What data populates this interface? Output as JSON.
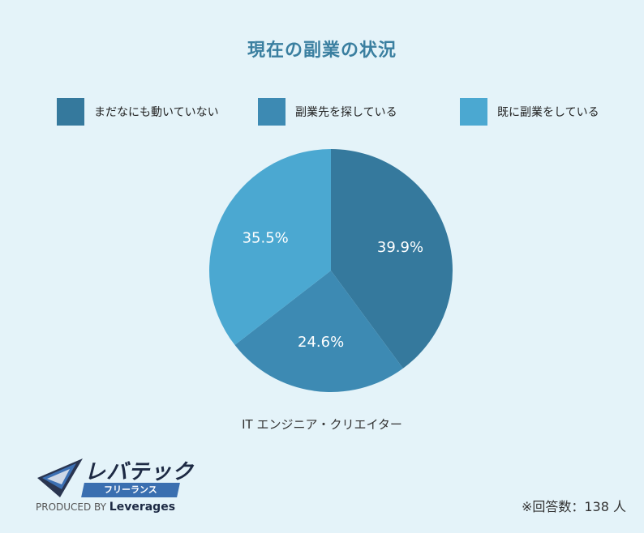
{
  "title": "現在の副業の状況",
  "legend": [
    {
      "label": "まだなにも動いていない",
      "color": "#35799d"
    },
    {
      "label": "副業先を探している",
      "color": "#3d8ab3"
    },
    {
      "label": "既に副業をしている",
      "color": "#4ba8d1"
    }
  ],
  "chart_data": {
    "type": "pie",
    "categories": [
      "まだなにも動いていない",
      "副業先を探している",
      "既に副業をしている"
    ],
    "values": [
      39.9,
      24.6,
      35.5
    ],
    "value_labels": [
      "39.9%",
      "24.6%",
      "35.5%"
    ],
    "colors": [
      "#35799d",
      "#3d8ab3",
      "#4ba8d1"
    ],
    "xlabel": "IT エンジニア・クリエイター",
    "legend_position": "top"
  },
  "caption": "IT エンジニア・クリエイター",
  "note": "※回答数：138 人",
  "logo": {
    "main": "レバテック",
    "sub": "フリーランス",
    "produced_prefix": "PRODUCED BY",
    "produced_brand": "Leverages"
  }
}
